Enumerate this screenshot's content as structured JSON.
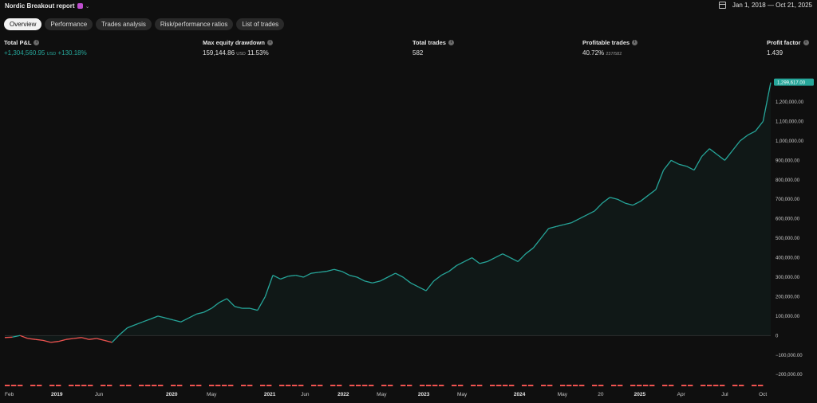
{
  "header": {
    "report_title": "Nordic Breakout report",
    "report_icon": "calendar-icon",
    "report_icon_color": "#c04fd0",
    "chevron_icon": "chevron-down-icon",
    "date_icon": "calendar-icon",
    "date_range": "Jan 1, 2018 — Oct 21, 2025"
  },
  "tabs": [
    {
      "label": "Overview",
      "active": true
    },
    {
      "label": "Performance",
      "active": false
    },
    {
      "label": "Trades analysis",
      "active": false
    },
    {
      "label": "Risk/performance ratios",
      "active": false
    },
    {
      "label": "List of trades",
      "active": false
    }
  ],
  "stats": {
    "total_pnl": {
      "label": "Total P&L",
      "value": "+1,304,560.95",
      "unit": "USD",
      "pct": "+130.18%"
    },
    "max_drawdown": {
      "label": "Max equity drawdown",
      "value": "159,144.86",
      "unit": "USD",
      "pct": "11.53%"
    },
    "total_trades": {
      "label": "Total trades",
      "value": "582"
    },
    "profitable_trades": {
      "label": "Profitable trades",
      "value": "40.72%",
      "detail": "237/582"
    },
    "profit_factor": {
      "label": "Profit factor",
      "value": "1.439"
    }
  },
  "colors": {
    "positive": "#26a69a",
    "negative": "#f05350",
    "background": "#0f0f0f",
    "tab_bg": "#2a2a2a",
    "tab_active_bg": "#f2f2f2"
  },
  "chart_data": {
    "type": "area",
    "y_ticks": [
      1200000,
      1100000,
      1000000,
      900000,
      800000,
      700000,
      600000,
      500000,
      400000,
      300000,
      200000,
      100000,
      0,
      -100000,
      -200000
    ],
    "y_tick_labels": [
      "1,200,000.00",
      "1,100,000.00",
      "1,000,000.00",
      "900,000.00",
      "800,000.00",
      "700,000.00",
      "600,000.00",
      "500,000.00",
      "400,000.00",
      "300,000.00",
      "200,000.00",
      "100,000.00",
      "0",
      "−100,000.00",
      "−200,000.00"
    ],
    "ylim": [
      -240000,
      1380000
    ],
    "x_tick_labels": [
      {
        "label": "Feb",
        "t": 0.0,
        "bold": false
      },
      {
        "label": "2019",
        "t": 0.068,
        "bold": true
      },
      {
        "label": "Jun",
        "t": 0.123,
        "bold": false
      },
      {
        "label": "2020",
        "t": 0.218,
        "bold": true
      },
      {
        "label": "May",
        "t": 0.27,
        "bold": false
      },
      {
        "label": "2021",
        "t": 0.346,
        "bold": true
      },
      {
        "label": "Jun",
        "t": 0.392,
        "bold": false
      },
      {
        "label": "2022",
        "t": 0.442,
        "bold": true
      },
      {
        "label": "May",
        "t": 0.492,
        "bold": false
      },
      {
        "label": "2023",
        "t": 0.547,
        "bold": true
      },
      {
        "label": "May",
        "t": 0.597,
        "bold": false
      },
      {
        "label": "2024",
        "t": 0.672,
        "bold": true
      },
      {
        "label": "May",
        "t": 0.728,
        "bold": false
      },
      {
        "label": "20",
        "t": 0.778,
        "bold": false
      },
      {
        "label": "2025",
        "t": 0.829,
        "bold": true
      },
      {
        "label": "Apr",
        "t": 0.883,
        "bold": false
      },
      {
        "label": "Jul",
        "t": 0.94,
        "bold": false
      },
      {
        "label": "Oct",
        "t": 0.995,
        "bold": false
      }
    ],
    "last_value_label": "1,299,617.00",
    "series": [
      {
        "values_t": [
          0.0,
          0.01,
          0.02,
          0.03,
          0.04,
          0.05,
          0.06,
          0.07,
          0.08,
          0.09,
          0.1,
          0.11,
          0.12,
          0.13,
          0.14,
          0.15,
          0.16,
          0.17,
          0.18,
          0.19,
          0.2,
          0.21,
          0.22,
          0.23,
          0.24,
          0.25,
          0.26,
          0.27,
          0.28,
          0.29,
          0.3,
          0.31,
          0.32,
          0.33,
          0.34,
          0.35,
          0.36,
          0.37,
          0.38,
          0.39,
          0.4,
          0.41,
          0.42,
          0.43,
          0.44,
          0.45,
          0.46,
          0.47,
          0.48,
          0.49,
          0.5,
          0.51,
          0.52,
          0.53,
          0.54,
          0.55,
          0.56,
          0.57,
          0.58,
          0.59,
          0.6,
          0.61,
          0.62,
          0.63,
          0.64,
          0.65,
          0.66,
          0.67,
          0.68,
          0.69,
          0.7,
          0.71,
          0.72,
          0.73,
          0.74,
          0.75,
          0.76,
          0.77,
          0.78,
          0.79,
          0.8,
          0.81,
          0.82,
          0.83,
          0.84,
          0.85,
          0.86,
          0.87,
          0.88,
          0.89,
          0.9,
          0.91,
          0.92,
          0.93,
          0.94,
          0.95,
          0.96,
          0.97,
          0.98,
          0.99,
          1.0
        ],
        "values": [
          -10000,
          -8000,
          0,
          -15000,
          -20000,
          -25000,
          -35000,
          -30000,
          -20000,
          -15000,
          -10000,
          -20000,
          -15000,
          -25000,
          -35000,
          5000,
          40000,
          55000,
          70000,
          85000,
          100000,
          90000,
          80000,
          70000,
          90000,
          110000,
          120000,
          140000,
          170000,
          190000,
          150000,
          140000,
          140000,
          130000,
          200000,
          310000,
          290000,
          305000,
          310000,
          300000,
          320000,
          325000,
          330000,
          340000,
          330000,
          310000,
          300000,
          280000,
          270000,
          280000,
          300000,
          320000,
          300000,
          270000,
          250000,
          230000,
          280000,
          310000,
          330000,
          360000,
          380000,
          400000,
          370000,
          380000,
          400000,
          420000,
          400000,
          380000,
          420000,
          450000,
          500000,
          550000,
          560000,
          570000,
          580000,
          600000,
          620000,
          640000,
          680000,
          710000,
          700000,
          680000,
          670000,
          690000,
          720000,
          750000,
          850000,
          900000,
          880000,
          870000,
          850000,
          920000,
          960000,
          930000,
          900000,
          950000,
          1000000,
          1030000,
          1050000,
          1100000,
          1299617
        ]
      }
    ]
  }
}
